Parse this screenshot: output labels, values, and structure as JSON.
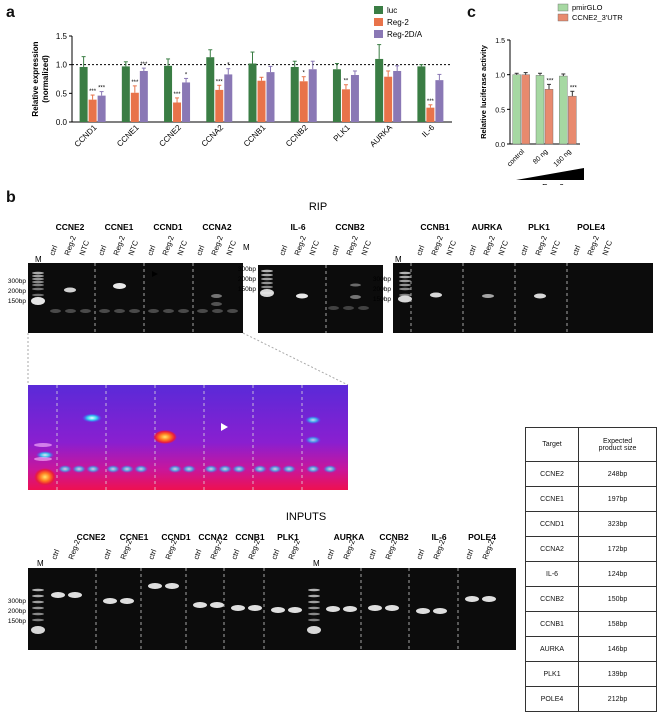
{
  "panel_labels": {
    "a": "a",
    "b": "b",
    "c": "c"
  },
  "chart_data": [
    {
      "type": "bar",
      "ylabel": "Relative expression\n(normalized)",
      "ylim": [
        0,
        1.5
      ],
      "yticks": [
        "0.0",
        "0.5",
        "1.0",
        "1.5"
      ],
      "reference_line": 1.0,
      "legend_placement": "top-right",
      "categories": [
        "CCND1",
        "CCNE1",
        "CCNE2",
        "CCNA2",
        "CCNB1",
        "CCNB2",
        "PLK1",
        "AURKA",
        "IL-6"
      ],
      "series": [
        {
          "name": "luc",
          "color": "#3a7d44",
          "values": [
            0.96,
            0.97,
            0.98,
            1.13,
            1.02,
            0.96,
            0.92,
            1.1,
            0.97
          ],
          "errors": [
            0.18,
            0.08,
            0.12,
            0.13,
            0.2,
            0.1,
            0.1,
            0.25,
            0.03
          ]
        },
        {
          "name": "Reg-2",
          "color": "#e8734a",
          "values": [
            0.39,
            0.51,
            0.34,
            0.56,
            0.72,
            0.71,
            0.57,
            0.79,
            0.25
          ],
          "errors": [
            0.08,
            0.12,
            0.08,
            0.08,
            0.06,
            0.08,
            0.08,
            0.1,
            0.05
          ]
        },
        {
          "name": "Reg-2D/A",
          "color": "#8a78b5",
          "values": [
            0.46,
            0.89,
            0.69,
            0.83,
            0.87,
            0.92,
            0.82,
            0.89,
            0.73
          ],
          "errors": [
            0.07,
            0.05,
            0.07,
            0.1,
            0.1,
            0.14,
            0.07,
            0.09,
            0.1
          ]
        }
      ],
      "significance": [
        [
          "",
          "***",
          "***"
        ],
        [
          "",
          "***",
          "***"
        ],
        [
          "",
          "***",
          "*"
        ],
        [
          "",
          "***",
          "*"
        ],
        [
          "",
          "",
          ""
        ],
        [
          "",
          "*",
          ""
        ],
        [
          "",
          "**",
          ""
        ],
        [
          "",
          "*",
          ""
        ],
        [
          "",
          "***",
          ""
        ]
      ]
    },
    {
      "type": "bar",
      "ylabel": "Relative luciferase activity",
      "ylim": [
        0,
        1.5
      ],
      "yticks": [
        "0.0",
        "0.5",
        "1.0",
        "1.5"
      ],
      "legend_placement": "top",
      "categories": [
        "control",
        "80 ng",
        "160 ng"
      ],
      "xgroup_label": "Reg-2",
      "series": [
        {
          "name": "pmirGLO",
          "color": "#a6d8a2",
          "values": [
            1.0,
            0.99,
            0.98
          ],
          "errors": [
            0.02,
            0.03,
            0.03
          ]
        },
        {
          "name": "CCNE2_3'UTR",
          "color": "#e88a6e",
          "values": [
            1.0,
            0.79,
            0.69
          ],
          "errors": [
            0.03,
            0.07,
            0.07
          ]
        }
      ],
      "significance": [
        [
          "",
          ""
        ],
        [
          "",
          "***"
        ],
        [
          "",
          "***"
        ]
      ]
    }
  ],
  "rip": {
    "title": "RIP",
    "gel1_genes": [
      "CCNE2",
      "CCNE1",
      "CCND1",
      "CCNA2"
    ],
    "gel2_genes": [
      "IL-6",
      "CCNB2"
    ],
    "gel3_genes": [
      "CCNB1",
      "AURKA",
      "PLK1",
      "POLE4"
    ],
    "lane_labels": [
      "ctrl",
      "Reg-2",
      "NTC"
    ],
    "marker_label": "M",
    "ladder": [
      "300bp",
      "200bp",
      "150bp"
    ]
  },
  "inputs": {
    "title": "INPUTS",
    "genes": [
      "CCNE2",
      "CCNE1",
      "CCND1",
      "CCNA2",
      "CCNB1",
      "PLK1",
      "AURKA",
      "CCNB2",
      "IL-6",
      "POLE4"
    ],
    "lane_labels": [
      "ctrl",
      "Reg-2"
    ],
    "marker_label": "M",
    "ladder": [
      "300bp",
      "200bp",
      "150bp"
    ]
  },
  "table": {
    "headers": [
      "Target",
      "Expected\nproduct size"
    ],
    "rows": [
      [
        "CCNE2",
        "248bp"
      ],
      [
        "CCNE1",
        "197bp"
      ],
      [
        "CCND1",
        "323bp"
      ],
      [
        "CCNA2",
        "172bp"
      ],
      [
        "IL-6",
        "124bp"
      ],
      [
        "CCNB2",
        "150bp"
      ],
      [
        "CCNB1",
        "158bp"
      ],
      [
        "AURKA",
        "146bp"
      ],
      [
        "PLK1",
        "139bp"
      ],
      [
        "POLE4",
        "212bp"
      ]
    ]
  }
}
